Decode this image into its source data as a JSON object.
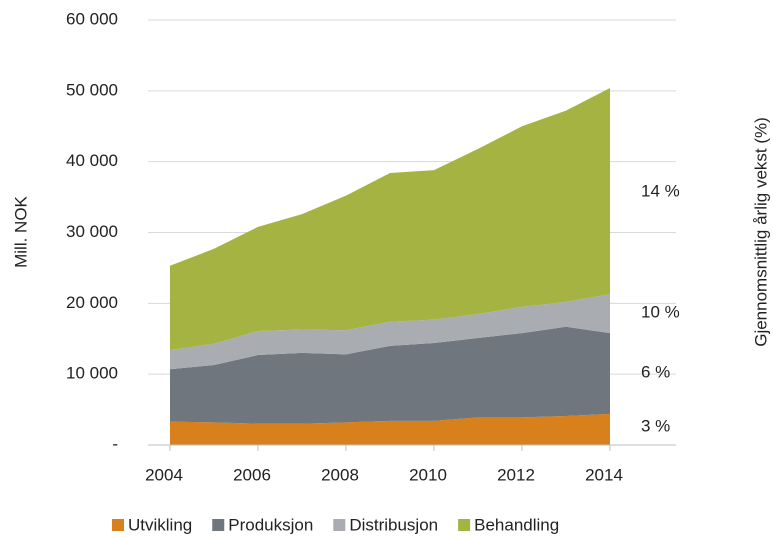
{
  "chart_data": {
    "type": "stacked_area",
    "ylabel": "Mill. NOK",
    "y2label": "Gjennomsnittlig årlig vekst (%)",
    "x": [
      2004,
      2005,
      2006,
      2007,
      2008,
      2009,
      2010,
      2011,
      2012,
      2013,
      2014
    ],
    "series": [
      {
        "name": "Utvikling",
        "color": "#d7801c",
        "values": [
          3300,
          3200,
          3000,
          3000,
          3200,
          3400,
          3400,
          3900,
          3900,
          4100,
          4400
        ]
      },
      {
        "name": "Produksjon",
        "color": "#6f767e",
        "values": [
          7400,
          8100,
          9700,
          10000,
          9600,
          10600,
          11000,
          11200,
          11900,
          12600,
          11400
        ]
      },
      {
        "name": "Distribusjon",
        "color": "#a9adb2",
        "values": [
          2700,
          3000,
          3400,
          3300,
          3400,
          3400,
          3300,
          3400,
          3700,
          3500,
          5500
        ]
      },
      {
        "name": "Behandling",
        "color": "#a5b343",
        "values": [
          11900,
          13400,
          14700,
          16300,
          19000,
          21000,
          21100,
          23300,
          25500,
          27000,
          29100
        ]
      }
    ],
    "annotations": [
      "3 %",
      "6 %",
      "10 %",
      "14 %"
    ],
    "xlim": [
      2003.5,
      2015.5
    ],
    "xticks": [
      2004,
      2006,
      2008,
      2010,
      2012,
      2014
    ],
    "ylim": [
      0,
      60000
    ],
    "yticks": [
      {
        "value": 0,
        "label": "-"
      },
      {
        "value": 10000,
        "label": "10 000"
      },
      {
        "value": 20000,
        "label": "20 000"
      },
      {
        "value": 30000,
        "label": "30 000"
      },
      {
        "value": 40000,
        "label": "40 000"
      },
      {
        "value": 50000,
        "label": "50 000"
      },
      {
        "value": 60000,
        "label": "60 000"
      }
    ],
    "grid": true,
    "legend": "bottom"
  }
}
